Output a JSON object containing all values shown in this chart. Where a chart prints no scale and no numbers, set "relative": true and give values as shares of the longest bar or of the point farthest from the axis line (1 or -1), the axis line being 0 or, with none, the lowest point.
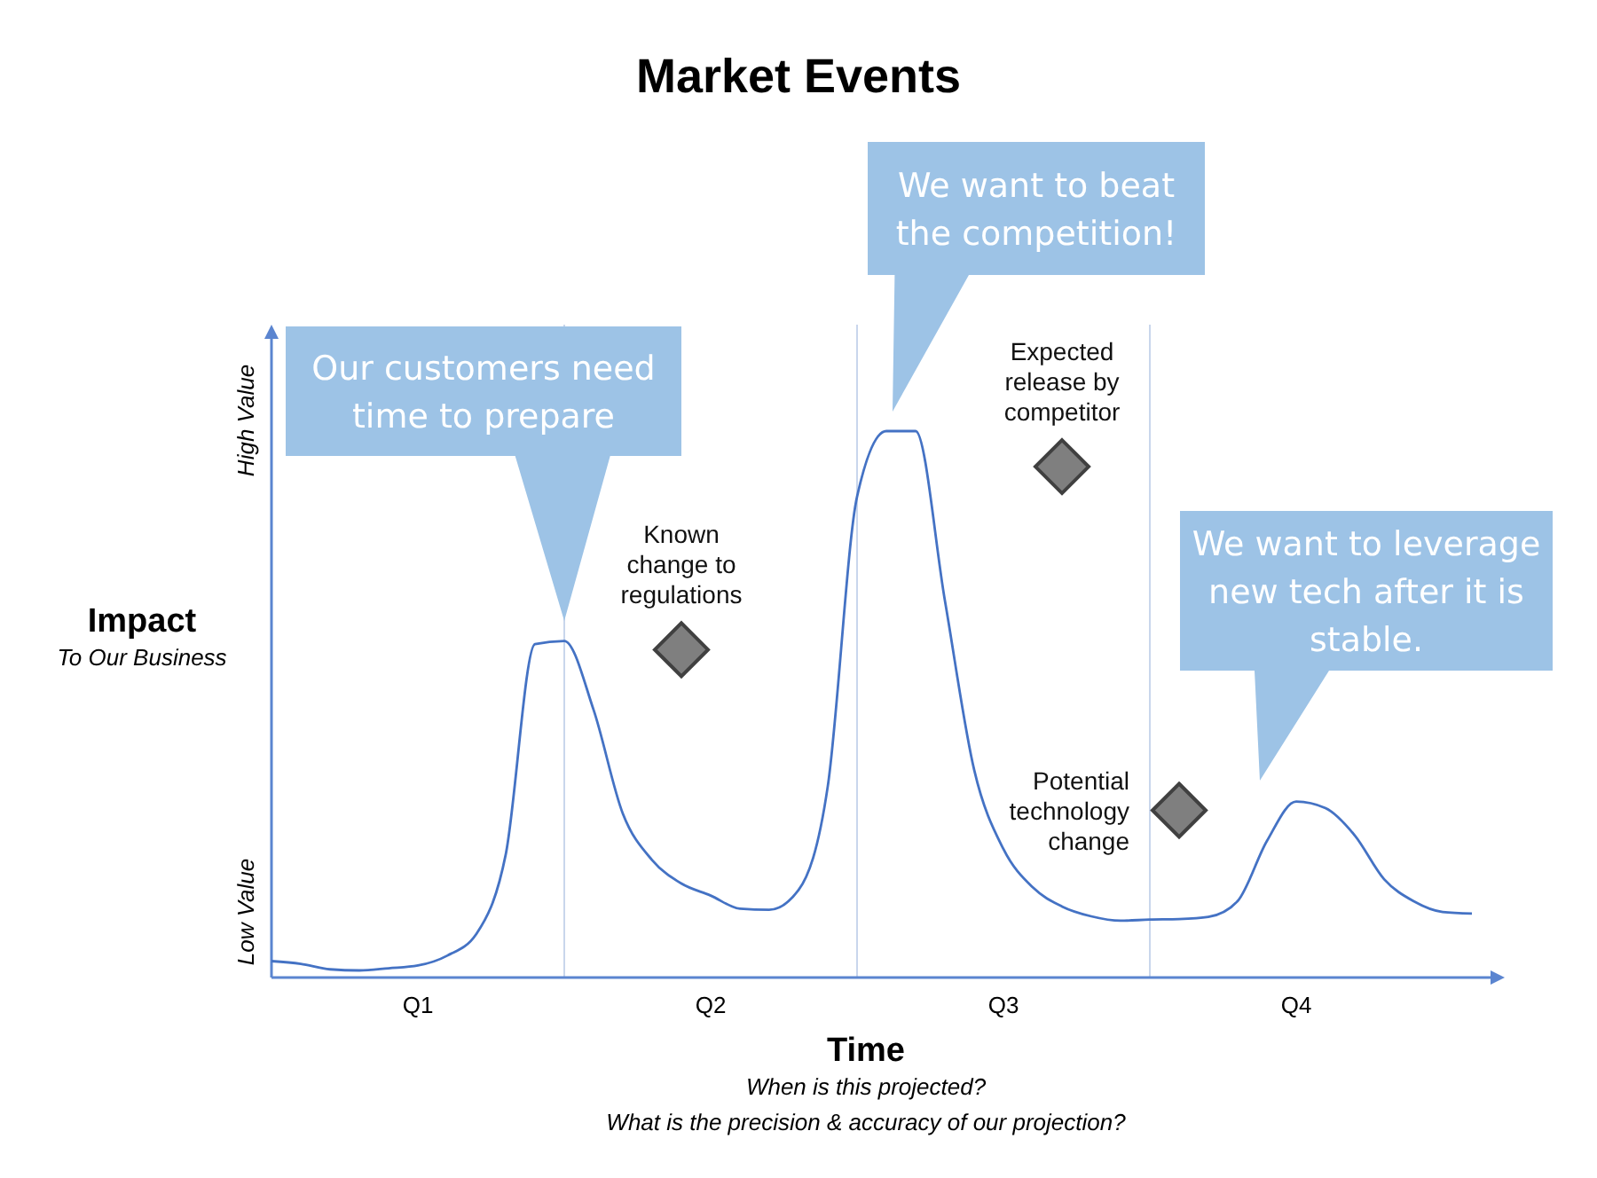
{
  "chart_data": {
    "type": "line",
    "title": "Market Events",
    "xlabel": "Time",
    "ylabel": "Impact",
    "relative": true,
    "grid": "x",
    "categories": [
      null,
      null,
      null,
      null,
      null,
      "Q1",
      null,
      null,
      null,
      null,
      null,
      null,
      null,
      null,
      null,
      "Q2",
      null,
      null,
      null,
      null,
      null,
      null,
      null,
      null,
      null,
      "Q3",
      null,
      null,
      null,
      null,
      null,
      null,
      null,
      null,
      null,
      "Q4",
      null,
      null,
      null,
      null,
      null,
      null,
      null
    ],
    "series": [
      {
        "color": "#4472c4",
        "values": [
          0.03,
          0.025,
          0.015,
          0.013,
          0.017,
          0.022,
          0.04,
          0.08,
          0.225,
          0.61,
          0.616,
          0.49,
          0.3,
          0.215,
          0.172,
          0.15,
          0.126,
          0.124,
          0.16,
          0.35,
          0.88,
          1,
          1,
          0.69,
          0.38,
          0.235,
          0.165,
          0.13,
          0.112,
          0.104,
          0.106,
          0.107,
          0.111,
          0.14,
          0.25,
          0.322,
          0.31,
          0.26,
          0.18,
          0.14,
          0.12,
          0.117,
          null
        ]
      },
      {
        "type": "scatter",
        "marker": "diamond",
        "color": "#7f7f7f",
        "values": [
          null,
          null,
          null,
          null,
          null,
          null,
          null,
          null,
          null,
          null,
          null,
          null,
          null,
          null,
          0.6,
          null,
          null,
          null,
          null,
          null,
          null,
          null,
          null,
          null,
          null,
          null,
          null,
          0.935,
          null,
          null,
          null,
          0.306,
          null,
          null,
          null,
          null,
          null,
          null,
          null,
          null,
          null,
          null,
          null
        ]
      }
    ],
    "annotations": [
      "Our customers need time to prepare",
      "We want to beat the competition!",
      "We want to leverage new tech after it is stable.",
      "To Our Business",
      "High Value",
      "Low Value",
      "When is this projected?",
      "What is the precision & accuracy of our projection?",
      "Known change to regulations",
      "Expected release by competitor",
      "Potential technology change"
    ]
  }
}
